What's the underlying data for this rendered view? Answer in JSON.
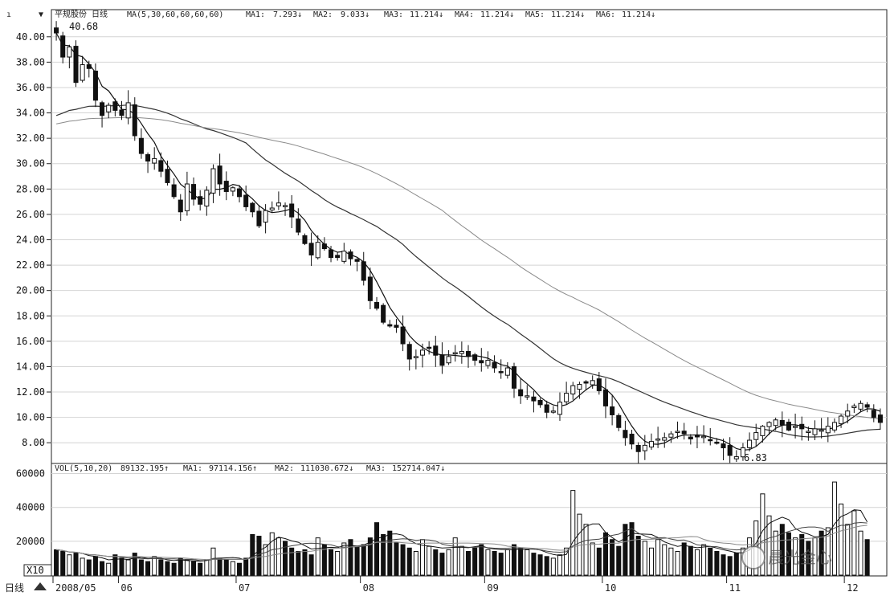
{
  "header": {
    "price_panel": "平规股份 日线",
    "ma_legend": "MA(5,30,60,60,60,60)",
    "ma_values": [
      {
        "label": "MA1:",
        "value": "7.293↓"
      },
      {
        "label": "MA2:",
        "value": "9.033↓"
      },
      {
        "label": "MA3:",
        "value": "11.214↓"
      },
      {
        "label": "MA4:",
        "value": "11.214↓"
      },
      {
        "label": "MA5:",
        "value": "11.214↓"
      },
      {
        "label": "MA6:",
        "value": "11.214↓"
      }
    ],
    "vol_legend": "VOL(5,10,20)",
    "vol_values": [
      {
        "label": "",
        "value": "89132.195↑"
      },
      {
        "label": "MA1:",
        "value": "97114.156↑"
      },
      {
        "label": "MA2:",
        "value": "111030.672↓"
      },
      {
        "label": "MA3:",
        "value": "152714.047↓"
      }
    ]
  },
  "annotations": {
    "high_label": "40.68",
    "low_label": "6.83",
    "vol_unit": "X10",
    "bottom_left": "日线"
  },
  "watermark": "晨光金心",
  "chart_data": [
    {
      "type": "candlestick",
      "ylim": [
        7,
        41
      ],
      "yticks": [
        8,
        10,
        12,
        14,
        16,
        18,
        20,
        22,
        24,
        26,
        28,
        30,
        32,
        34,
        36,
        38,
        40
      ],
      "ytick_labels": [
        "8.00",
        "10.00",
        "12.00",
        "14.00",
        "16.00",
        "18.00",
        "20.00",
        "22.00",
        "24.00",
        "26.00",
        "28.00",
        "30.00",
        "32.00",
        "34.00",
        "36.00",
        "38.00",
        "40.00"
      ],
      "grid": true,
      "x_labels": [
        "2008/05",
        "06",
        "07",
        "08",
        "09",
        "10",
        "11",
        "12"
      ],
      "closes": [
        40.3,
        38.4,
        39.2,
        36.4,
        37.8,
        37.5,
        35.0,
        33.8,
        34.6,
        34.2,
        33.8,
        34.8,
        32.2,
        30.8,
        30.2,
        30.4,
        29.4,
        28.5,
        27.4,
        26.2,
        28.4,
        27.2,
        26.8,
        27.9,
        29.6,
        28.4,
        27.8,
        28.1,
        27.4,
        26.6,
        26.2,
        25.1,
        26.3,
        26.5,
        26.9,
        26.7,
        25.8,
        24.6,
        23.7,
        22.8,
        23.8,
        23.3,
        22.6,
        22.6,
        23.1,
        22.5,
        22.3,
        20.8,
        19.2,
        18.6,
        17.5,
        17.2,
        17.1,
        15.8,
        14.6,
        14.8,
        15.3,
        15.5,
        14.9,
        14.1,
        14.8,
        15.1,
        15.2,
        14.8,
        14.5,
        14.3,
        14.5,
        13.9,
        13.6,
        13.9,
        12.3,
        11.7,
        11.7,
        11.3,
        11.0,
        10.4,
        10.5,
        11.2,
        11.9,
        12.5,
        12.6,
        12.7,
        12.9,
        12.1,
        10.9,
        10.2,
        9.2,
        8.4,
        7.9,
        7.3,
        7.8,
        8.1,
        8.3,
        8.4,
        8.7,
        8.9,
        8.7,
        8.3,
        8.5,
        8.5,
        8.2,
        8.0,
        7.6,
        7.0,
        6.9,
        7.6,
        8.2,
        8.8,
        9.3,
        9.6,
        9.8,
        9.4,
        9.0,
        9.3,
        9.1,
        8.9,
        9.1,
        9.0,
        9.3,
        9.6,
        10.1,
        10.5,
        10.9,
        11.1,
        10.8,
        10.0,
        9.6
      ],
      "ma_series": [
        {
          "name": "MA1",
          "color": "#111111"
        },
        {
          "name": "MA2",
          "color": "#333333"
        },
        {
          "name": "MA3",
          "color": "#8a8a8a"
        }
      ]
    },
    {
      "type": "bar",
      "ylim": [
        0,
        65000
      ],
      "yticks": [
        20000,
        40000,
        60000
      ],
      "ytick_labels": [
        "20000",
        "40000",
        "60000"
      ],
      "unit": "X10",
      "values": [
        15000,
        14000,
        12000,
        13000,
        10000,
        9000,
        11000,
        8000,
        7000,
        12000,
        10000,
        9000,
        13000,
        9000,
        8000,
        11000,
        9000,
        8000,
        7000,
        10000,
        9000,
        8000,
        7000,
        9000,
        16000,
        10000,
        9000,
        8000,
        7000,
        10000,
        24000,
        23000,
        18000,
        25000,
        22000,
        20000,
        16000,
        14000,
        15000,
        12000,
        22000,
        18000,
        15000,
        14000,
        19000,
        21000,
        17000,
        18000,
        22000,
        31000,
        24000,
        26000,
        19000,
        18000,
        16000,
        14000,
        21000,
        17000,
        15000,
        13000,
        15000,
        22000,
        17000,
        14000,
        16000,
        18000,
        15000,
        14000,
        13000,
        15000,
        18000,
        16000,
        15000,
        13000,
        12000,
        11000,
        10000,
        12000,
        16000,
        50000,
        36000,
        30000,
        19000,
        16000,
        25000,
        21000,
        17000,
        30000,
        31000,
        23000,
        20000,
        16000,
        21000,
        18000,
        16000,
        14000,
        19000,
        17000,
        15000,
        18000,
        16000,
        14000,
        12000,
        11000,
        13000,
        16000,
        22000,
        32000,
        48000,
        35000,
        26000,
        30000,
        25000,
        22000,
        24000,
        20000,
        22000,
        26000,
        28000,
        55000,
        42000,
        30000,
        38000,
        26000,
        21000
      ]
    }
  ]
}
